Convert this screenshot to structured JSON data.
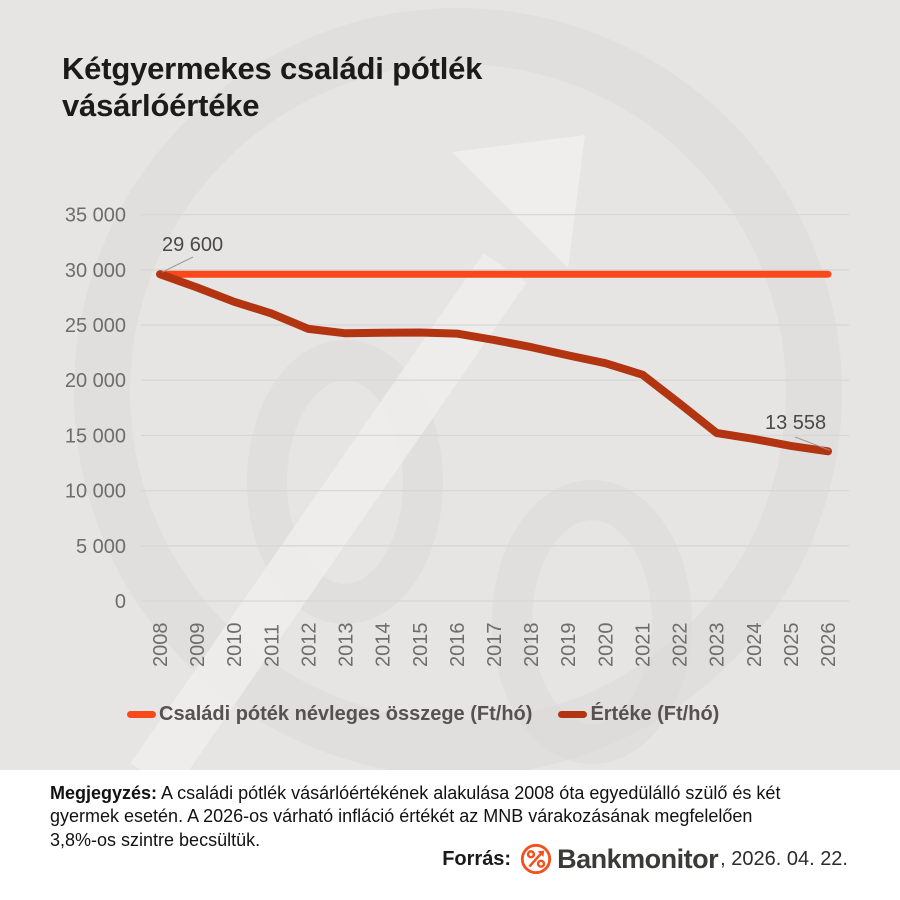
{
  "title_lines": [
    "Kétgyermekes családi pótlék",
    "vásárlóértéke"
  ],
  "chart_data": {
    "type": "line",
    "title": "Kétgyermekes családi pótlék vásárlóértéke",
    "x": [
      "2008",
      "2009",
      "2010",
      "2011",
      "2012",
      "2013",
      "2014",
      "2015",
      "2016",
      "2017",
      "2018",
      "2019",
      "2020",
      "2021",
      "2022",
      "2023",
      "2024",
      "2025",
      "2026"
    ],
    "series": [
      {
        "name": "Családi póték névleges összege (Ft/hó)",
        "color": "#f9481b",
        "width": 7,
        "values": [
          29600,
          29600,
          29600,
          29600,
          29600,
          29600,
          29600,
          29600,
          29600,
          29600,
          29600,
          29600,
          29600,
          29600,
          29600,
          29600,
          29600,
          29600,
          29600
        ]
      },
      {
        "name": "Értéke (Ft/hó)",
        "color": "#b23410",
        "width": 8,
        "values": [
          29600,
          28400,
          27100,
          26050,
          24650,
          24250,
          24300,
          24320,
          24220,
          23650,
          23000,
          22250,
          21540,
          20500,
          17900,
          15220,
          14680,
          14050,
          13558
        ]
      }
    ],
    "ylim": [
      0,
      35000
    ],
    "yticks": [
      {
        "label": "0",
        "value": 0
      },
      {
        "label": "5 000",
        "value": 5000
      },
      {
        "label": "10 000",
        "value": 10000
      },
      {
        "label": "15 000",
        "value": 15000
      },
      {
        "label": "20 000",
        "value": 20000
      },
      {
        "label": "25 000",
        "value": 25000
      },
      {
        "label": "30 000",
        "value": 30000
      },
      {
        "label": "35 000",
        "value": 35000
      }
    ],
    "grid": true,
    "grid_color": "#d8d7d5",
    "legend_position": "bottom",
    "annotations": [
      {
        "label": "29 600",
        "series": 1,
        "index": 0
      },
      {
        "label": "13 558",
        "series": 1,
        "index": 18
      }
    ]
  },
  "legend": {
    "item1": "Családi póték névleges összege (Ft/hó)",
    "item2": "Értéke (Ft/hó)"
  },
  "note": {
    "line1_bold": "Megjegyzés:",
    "line1_rest": " A családi pótlék vásárlóértékének alakulása 2008 óta egyedülálló szülő és két",
    "line2": "gyermek esetén. A 2026-os várható infláció értékét az MNB várakozásának megfelelően",
    "line3": "3,8%-os szintre becsültük."
  },
  "source": {
    "label": "Forrás:",
    "brand": "Bankmonitor",
    "date_suffix": ", 2026. 04. 22."
  },
  "colors": {
    "panel_background": "#e6e5e4",
    "footer_background": "#ffffff",
    "nominal_line": "#f9481b",
    "real_value_line": "#b23410",
    "brand_orange": "#f4501e"
  }
}
